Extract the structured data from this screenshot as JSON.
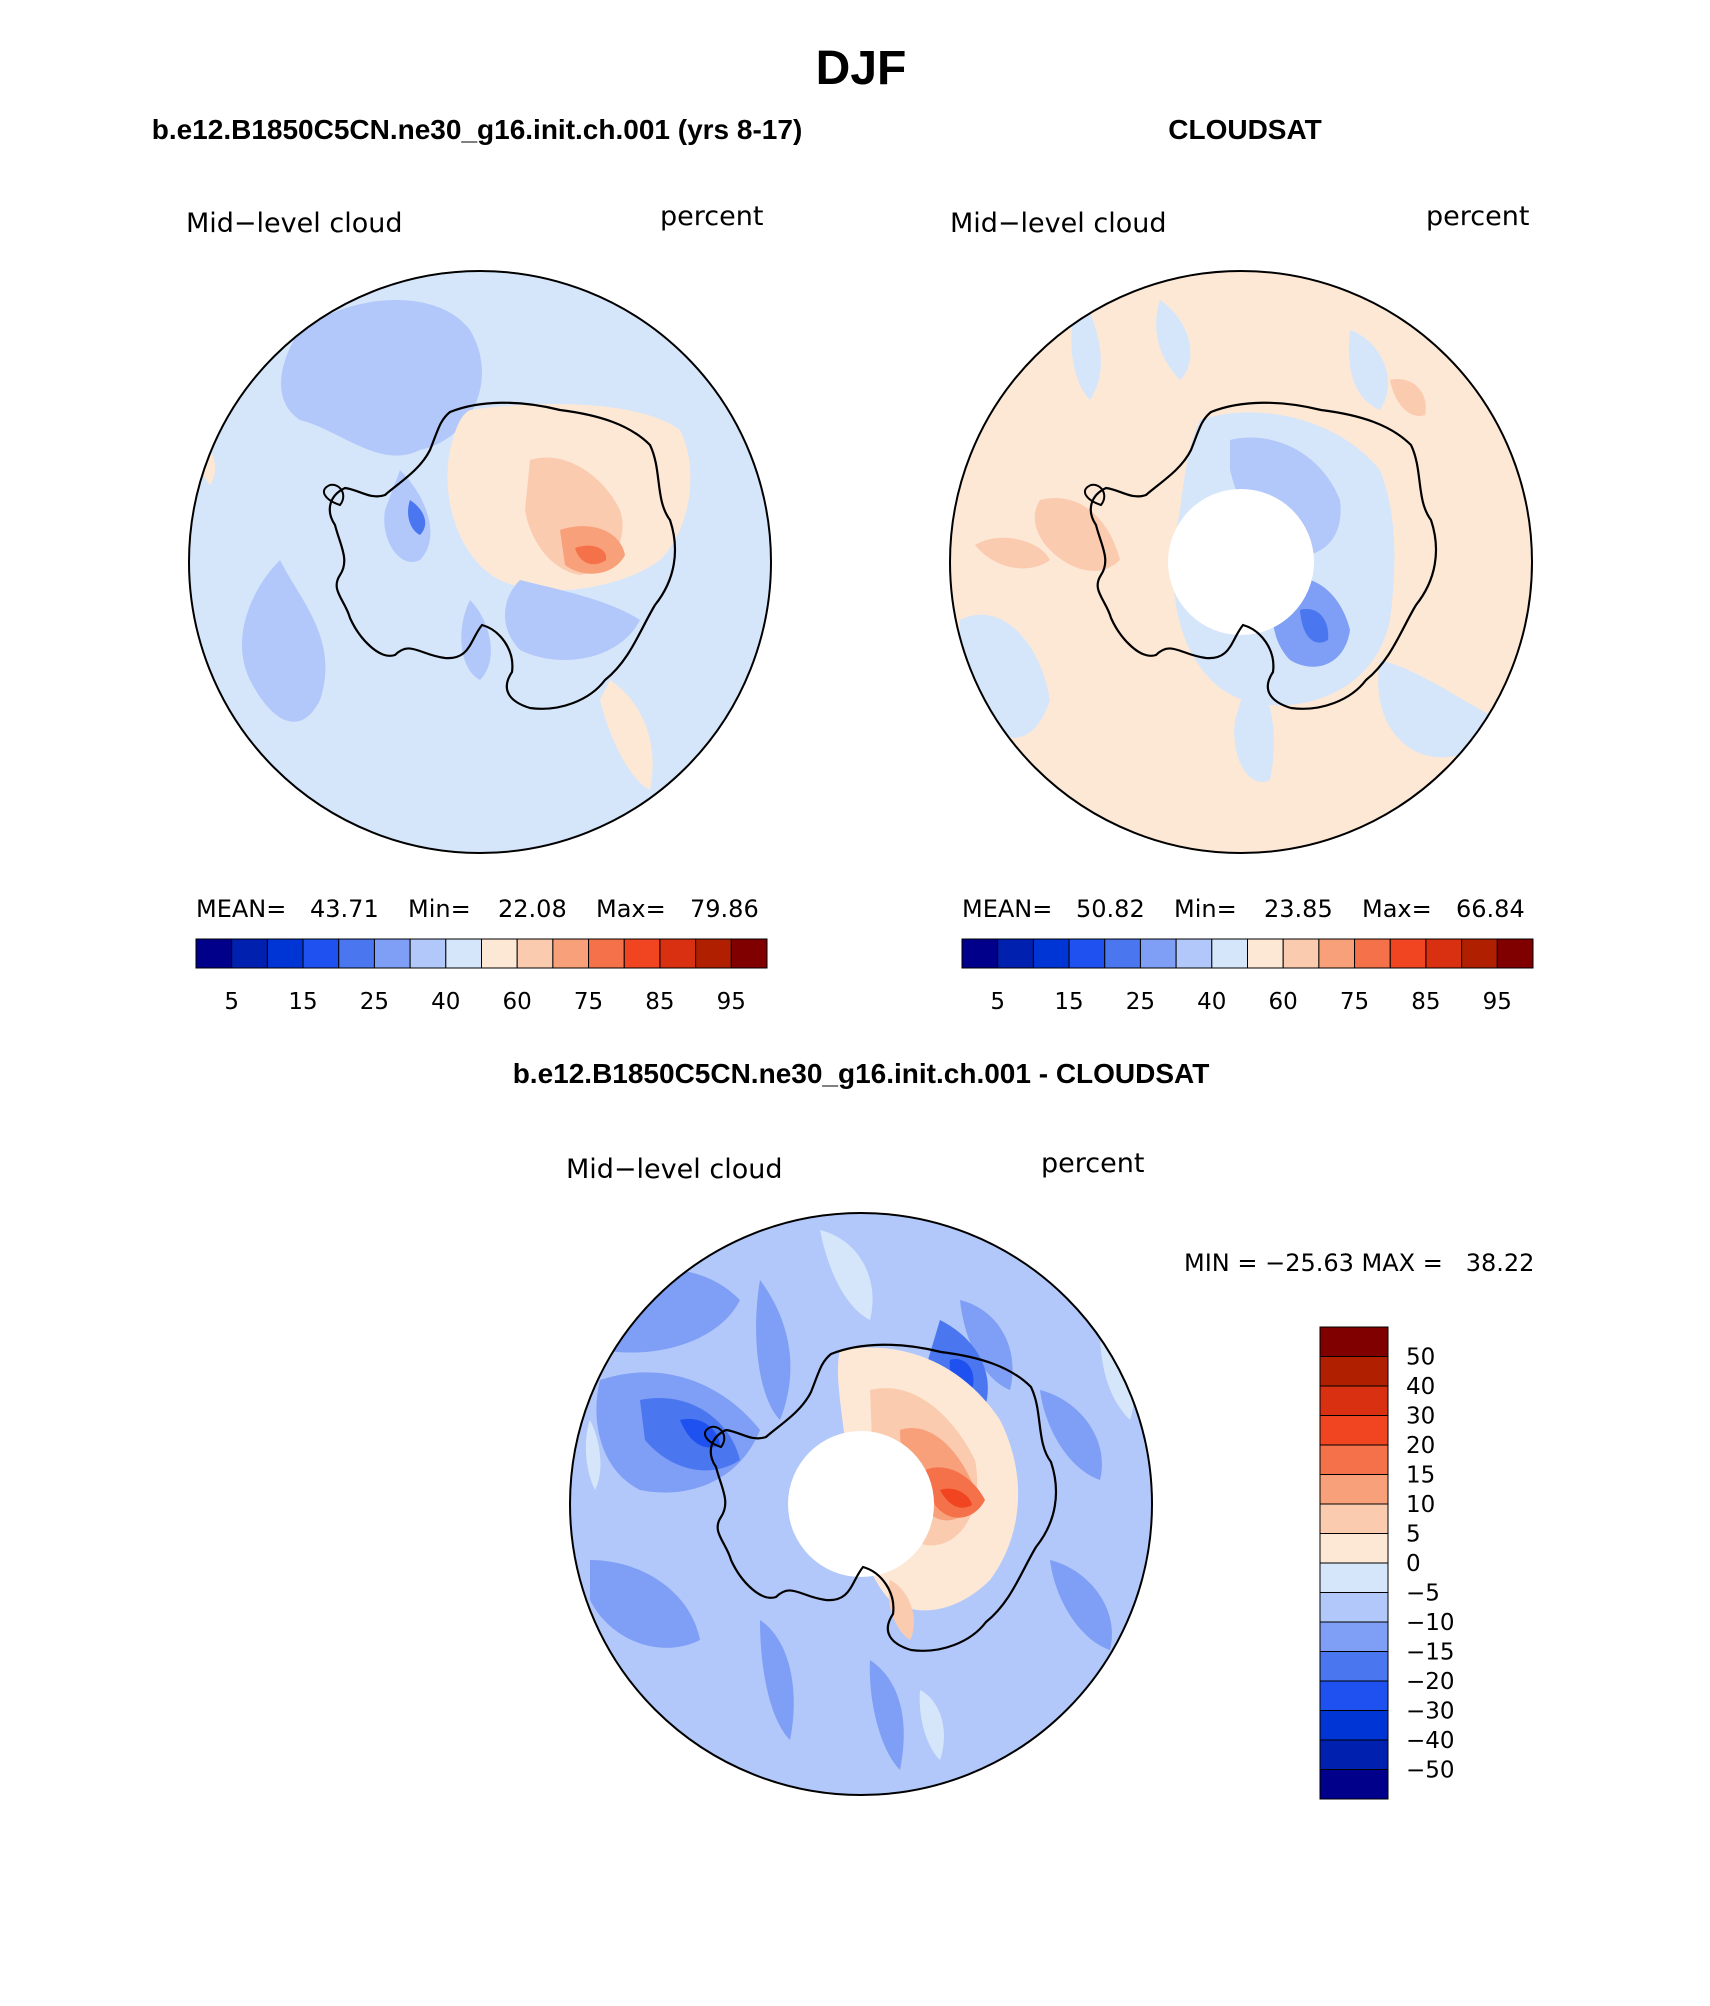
{
  "main_title": "DJF",
  "panels": [
    {
      "case_title": "b.e12.B1850C5CN.ne30_g16.init.ch.001 (yrs 8-17)",
      "variable": "Mid−level cloud",
      "units": "percent",
      "stats": {
        "mean_label": "MEAN=",
        "mean": "43.71",
        "min_label": "Min=",
        "min": "22.08",
        "max_label": "Max=",
        "max": "79.86"
      }
    },
    {
      "case_title": "CLOUDSAT",
      "variable": "Mid−level cloud",
      "units": "percent",
      "stats": {
        "mean_label": "MEAN=",
        "mean": "50.82",
        "min_label": "Min=",
        "min": "23.85",
        "max_label": "Max=",
        "max": "66.84"
      }
    },
    {
      "case_title": "b.e12.B1850C5CN.ne30_g16.init.ch.001 - CLOUDSAT",
      "variable": "Mid−level cloud",
      "units": "percent",
      "minmax_text": "MIN = −25.63 MAX =   38.22"
    }
  ],
  "colors": {
    "abs_scale": [
      "#00008b",
      "#0020b0",
      "#0035d5",
      "#1f50f0",
      "#4a76f0",
      "#7f9ef5",
      "#b2c8fa",
      "#d6e6fa",
      "#fde8d6",
      "#fbcbb0",
      "#f8a07a",
      "#f5714a",
      "#f04520",
      "#d83010",
      "#b02000",
      "#800000"
    ],
    "diff_scale": [
      "#800000",
      "#b02000",
      "#d83010",
      "#f04520",
      "#f5714a",
      "#f8a07a",
      "#fbcbb0",
      "#fde8d6",
      "#d6e6fa",
      "#b2c8fa",
      "#7f9ef5",
      "#4a76f0",
      "#1f50f0",
      "#0035d5",
      "#0020b0",
      "#00008b"
    ]
  },
  "abs_colorbar_labels": [
    "5",
    "15",
    "25",
    "40",
    "60",
    "75",
    "85",
    "95"
  ],
  "diff_colorbar_labels": [
    "50",
    "40",
    "30",
    "20",
    "15",
    "10",
    "5",
    "0",
    "−5",
    "−10",
    "−15",
    "−20",
    "−30",
    "−40",
    "−50"
  ]
}
